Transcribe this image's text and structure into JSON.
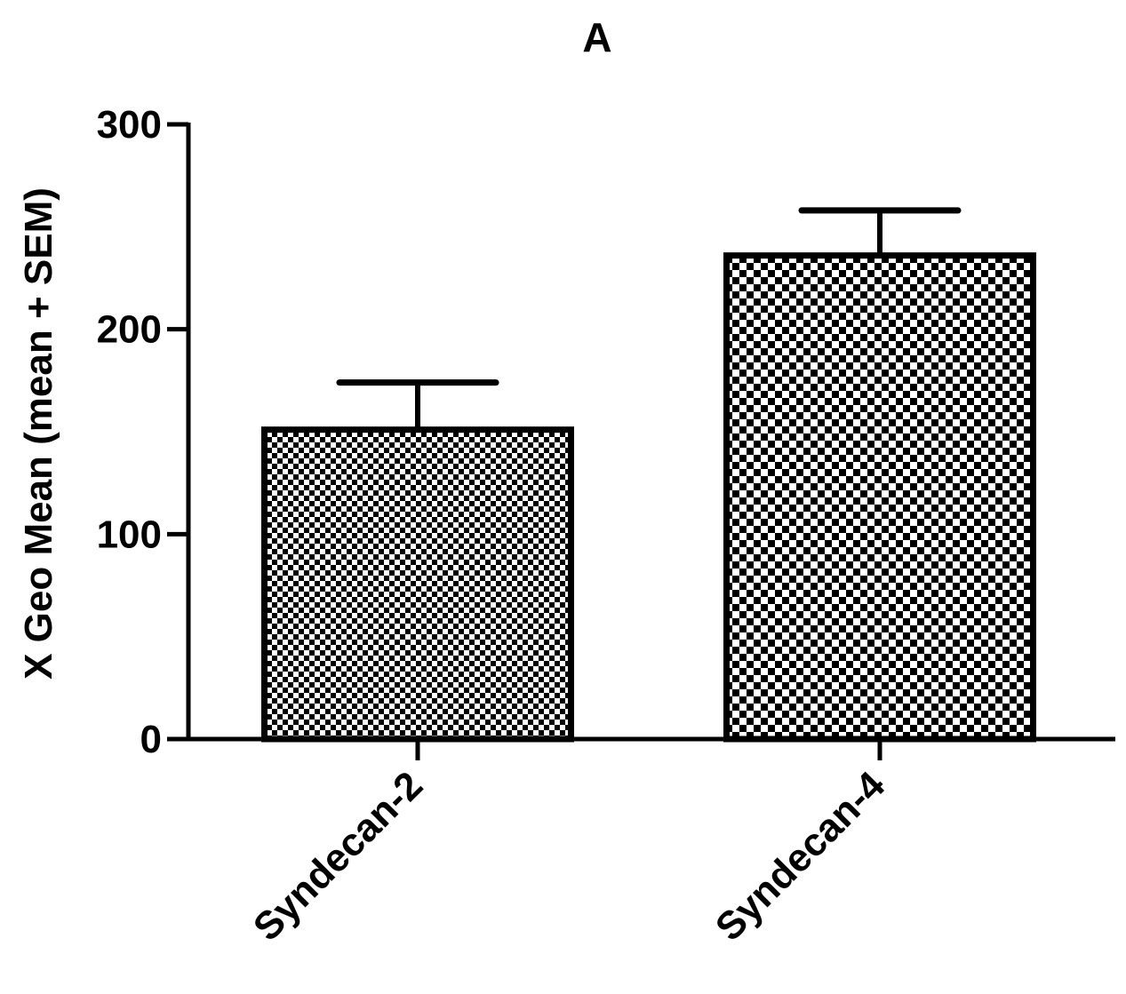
{
  "chart_data": {
    "type": "bar",
    "title": "A",
    "xlabel": "",
    "ylabel": "X Geo Mean (mean + SEM)",
    "categories": [
      "Syndecan-2",
      "Syndecan-4"
    ],
    "values": [
      151,
      236
    ],
    "errors": [
      23,
      22
    ],
    "ylim": [
      0,
      300
    ],
    "yticks": [
      0,
      100,
      200,
      300
    ],
    "ytick_labels": [
      "0",
      "100",
      "200",
      "300"
    ],
    "grid": false,
    "legend": "none",
    "bar_fill": "checkerboard",
    "colors": {
      "ink": "#000000",
      "background": "#ffffff"
    }
  }
}
